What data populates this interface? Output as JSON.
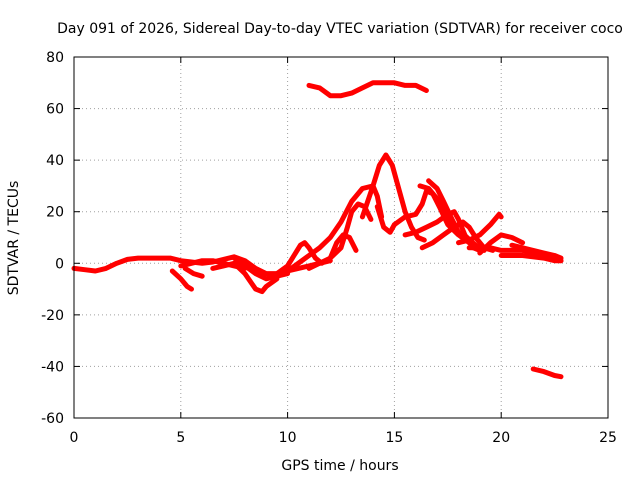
{
  "chart_data": {
    "type": "line",
    "title": "Day 091 of 2026, Sidereal Day-to-day VTEC variation (SDTVAR) for receiver coco",
    "xlabel": "GPS time / hours",
    "ylabel": "SDTVAR / TECUs",
    "xlim": [
      0,
      25
    ],
    "ylim": [
      -60,
      80
    ],
    "xticks": [
      0,
      5,
      10,
      15,
      20,
      25
    ],
    "yticks": [
      -60,
      -40,
      -20,
      0,
      20,
      40,
      60,
      80
    ],
    "grid": true,
    "series_color": "#ff0000",
    "series": [
      {
        "name": "base",
        "points": [
          [
            0,
            -2
          ],
          [
            0.5,
            -2.5
          ],
          [
            1,
            -3
          ],
          [
            1.5,
            -2
          ],
          [
            2,
            0
          ],
          [
            2.5,
            1.5
          ],
          [
            3,
            2
          ],
          [
            3.5,
            2
          ],
          [
            4,
            2
          ],
          [
            4.5,
            2
          ],
          [
            5,
            1
          ],
          [
            5.5,
            0.5
          ],
          [
            6,
            0
          ],
          [
            6.5,
            0.5
          ],
          [
            7,
            1.5
          ],
          [
            7.5,
            2.5
          ],
          [
            8,
            1
          ],
          [
            8.5,
            -2
          ],
          [
            9,
            -4
          ],
          [
            9.5,
            -4
          ],
          [
            10,
            -3
          ],
          [
            10.5,
            -2
          ],
          [
            11,
            -1
          ],
          [
            11.5,
            0
          ],
          [
            12,
            1
          ]
        ]
      },
      {
        "name": "dip-5",
        "points": [
          [
            4.6,
            -3
          ],
          [
            5,
            -6
          ],
          [
            5.3,
            -9
          ],
          [
            5.5,
            -10
          ]
        ]
      },
      {
        "name": "dip-6",
        "points": [
          [
            5.2,
            -2
          ],
          [
            5.6,
            -4
          ],
          [
            6,
            -5
          ]
        ]
      },
      {
        "name": "mid-1",
        "points": [
          [
            5,
            -1
          ],
          [
            5.5,
            0
          ],
          [
            6,
            1
          ],
          [
            6.5,
            1
          ],
          [
            7,
            0
          ],
          [
            7.5,
            -1
          ],
          [
            8,
            -2
          ]
        ]
      },
      {
        "name": "mid-2",
        "points": [
          [
            6.5,
            -2
          ],
          [
            7,
            -1
          ],
          [
            7.5,
            0
          ],
          [
            8,
            -4
          ],
          [
            8.5,
            -10
          ],
          [
            8.8,
            -11
          ],
          [
            9,
            -9
          ],
          [
            9.5,
            -6
          ]
        ]
      },
      {
        "name": "mid-3",
        "points": [
          [
            7.5,
            2
          ],
          [
            8,
            -1
          ],
          [
            8.5,
            -4
          ],
          [
            9,
            -6
          ],
          [
            9.5,
            -5
          ],
          [
            10,
            -4
          ]
        ]
      },
      {
        "name": "rise-a",
        "points": [
          [
            9.5,
            -4
          ],
          [
            10,
            -1
          ],
          [
            10.3,
            3
          ],
          [
            10.6,
            7
          ],
          [
            10.8,
            8
          ],
          [
            11,
            6
          ],
          [
            11.3,
            2
          ],
          [
            11.6,
            0
          ]
        ]
      },
      {
        "name": "rise-b",
        "points": [
          [
            10,
            -3
          ],
          [
            10.5,
            0
          ],
          [
            11,
            3
          ],
          [
            11.5,
            6
          ],
          [
            12,
            10
          ],
          [
            12.5,
            16
          ],
          [
            13,
            24
          ],
          [
            13.5,
            29
          ],
          [
            14,
            30
          ],
          [
            14.2,
            26
          ],
          [
            14.4,
            18
          ]
        ]
      },
      {
        "name": "rise-c",
        "points": [
          [
            11,
            -2
          ],
          [
            11.5,
            0
          ],
          [
            12,
            2
          ],
          [
            12.5,
            6
          ],
          [
            12.8,
            14
          ],
          [
            13,
            20
          ],
          [
            13.3,
            23
          ],
          [
            13.6,
            22
          ],
          [
            13.9,
            17
          ]
        ]
      },
      {
        "name": "rise-d",
        "points": [
          [
            12,
            2
          ],
          [
            12.3,
            8
          ],
          [
            12.6,
            11
          ],
          [
            12.9,
            10
          ],
          [
            13.2,
            5
          ]
        ]
      },
      {
        "name": "peak",
        "points": [
          [
            13.5,
            18
          ],
          [
            14,
            30
          ],
          [
            14.3,
            38
          ],
          [
            14.6,
            42
          ],
          [
            14.9,
            38
          ],
          [
            15.2,
            29
          ],
          [
            15.5,
            20
          ],
          [
            15.8,
            14
          ],
          [
            16.1,
            10
          ],
          [
            16.4,
            9
          ]
        ]
      },
      {
        "name": "low-dip",
        "points": [
          [
            14.2,
            22
          ],
          [
            14.5,
            14
          ],
          [
            14.8,
            12
          ],
          [
            15,
            15
          ]
        ]
      },
      {
        "name": "plateau",
        "points": [
          [
            15,
            15
          ],
          [
            15.5,
            18
          ],
          [
            16,
            19
          ],
          [
            16.3,
            23
          ],
          [
            16.5,
            28
          ],
          [
            16.8,
            27
          ],
          [
            17.1,
            22
          ],
          [
            17.5,
            15
          ],
          [
            18,
            11
          ],
          [
            18.5,
            8
          ]
        ]
      },
      {
        "name": "hump-1",
        "points": [
          [
            16.2,
            30
          ],
          [
            16.6,
            29
          ],
          [
            16.9,
            26
          ],
          [
            17.2,
            23
          ],
          [
            17.6,
            17
          ],
          [
            18,
            12
          ],
          [
            18.4,
            10
          ],
          [
            18.8,
            7
          ],
          [
            19.2,
            5
          ]
        ]
      },
      {
        "name": "hump-2",
        "points": [
          [
            16.6,
            32
          ],
          [
            17,
            29
          ],
          [
            17.3,
            24
          ],
          [
            17.7,
            17
          ],
          [
            18,
            12
          ],
          [
            18.4,
            10
          ],
          [
            18.7,
            6
          ],
          [
            19,
            5
          ]
        ]
      },
      {
        "name": "cross-1",
        "points": [
          [
            15.5,
            11
          ],
          [
            16,
            12
          ],
          [
            16.5,
            14
          ],
          [
            17,
            16
          ],
          [
            17.5,
            19
          ],
          [
            17.8,
            20
          ],
          [
            18,
            17
          ],
          [
            18.3,
            11
          ],
          [
            18.6,
            7
          ]
        ]
      },
      {
        "name": "cross-2",
        "points": [
          [
            16.3,
            6
          ],
          [
            16.8,
            8
          ],
          [
            17.3,
            11
          ],
          [
            17.8,
            14
          ],
          [
            18.2,
            16
          ],
          [
            18.5,
            14
          ],
          [
            18.8,
            10
          ],
          [
            19.2,
            6
          ],
          [
            19.6,
            5
          ]
        ]
      },
      {
        "name": "right-1",
        "points": [
          [
            18,
            8
          ],
          [
            18.5,
            9
          ],
          [
            19,
            11
          ],
          [
            19.5,
            15
          ],
          [
            19.9,
            19
          ],
          [
            20,
            18
          ]
        ]
      },
      {
        "name": "right-2",
        "points": [
          [
            19,
            4
          ],
          [
            19.5,
            8
          ],
          [
            20,
            11
          ],
          [
            20.5,
            10
          ],
          [
            21,
            8
          ]
        ]
      },
      {
        "name": "right-3",
        "points": [
          [
            18.5,
            6
          ],
          [
            19,
            6
          ],
          [
            19.5,
            6
          ],
          [
            20,
            5
          ],
          [
            20.5,
            5
          ],
          [
            21,
            5
          ],
          [
            21.5,
            4
          ],
          [
            22,
            3
          ],
          [
            22.5,
            2
          ],
          [
            22.8,
            1
          ]
        ]
      },
      {
        "name": "right-4",
        "points": [
          [
            20.5,
            7
          ],
          [
            21,
            6
          ],
          [
            21.5,
            5
          ],
          [
            22,
            4
          ],
          [
            22.5,
            3
          ],
          [
            22.8,
            2
          ]
        ]
      },
      {
        "name": "right-5",
        "points": [
          [
            20,
            3
          ],
          [
            21,
            3
          ],
          [
            22,
            2
          ],
          [
            22.5,
            1
          ],
          [
            22.8,
            1
          ]
        ]
      },
      {
        "name": "top-arc",
        "points": [
          [
            11,
            69
          ],
          [
            11.5,
            68
          ],
          [
            12,
            65
          ],
          [
            12.5,
            65
          ],
          [
            13,
            66
          ],
          [
            13.5,
            68
          ],
          [
            14,
            70
          ],
          [
            14.5,
            70
          ],
          [
            15,
            70
          ],
          [
            15.5,
            69
          ],
          [
            16,
            69
          ],
          [
            16.5,
            67
          ]
        ]
      },
      {
        "name": "bottom-tail",
        "points": [
          [
            21.5,
            -41
          ],
          [
            22,
            -42
          ],
          [
            22.5,
            -43.5
          ],
          [
            22.8,
            -44
          ]
        ]
      }
    ]
  }
}
